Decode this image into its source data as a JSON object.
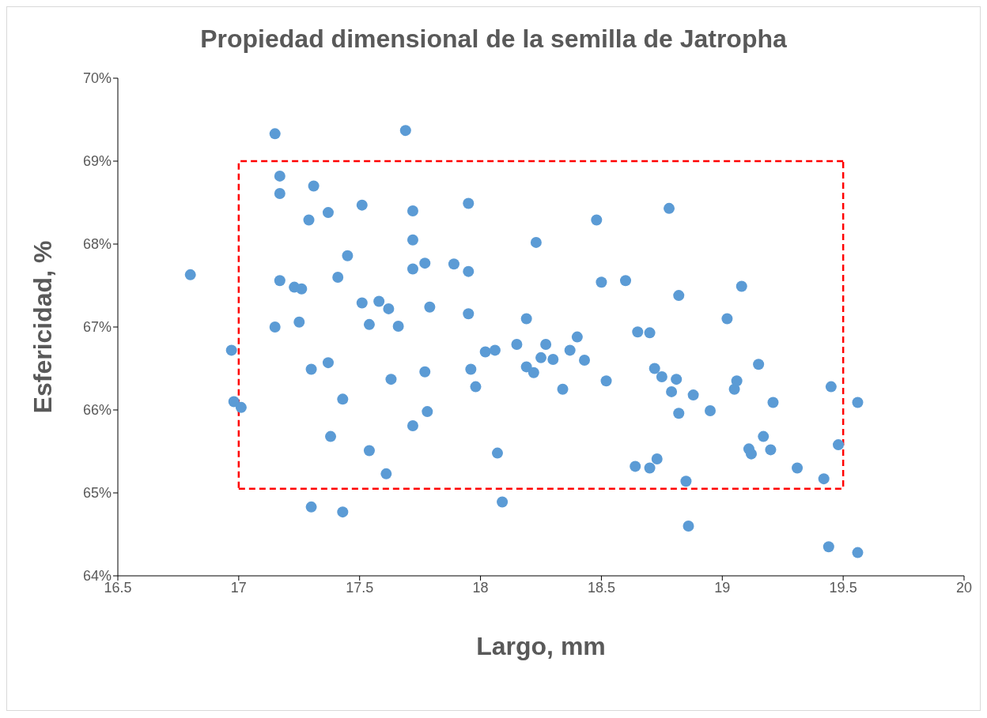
{
  "chart_data": {
    "type": "scatter",
    "title": "Propiedad dimensional de la semilla de Jatropha",
    "xlabel": "Largo, mm",
    "ylabel": "Esfericidad, %",
    "xlim": [
      16.5,
      20
    ],
    "xticks": [
      16.5,
      17,
      17.5,
      18,
      18.5,
      19,
      19.5,
      20
    ],
    "grid": false,
    "ylim": [
      64,
      70
    ],
    "yticks": [
      {
        "value": 64,
        "label": "64%"
      },
      {
        "value": 65,
        "label": "65%"
      },
      {
        "value": 66,
        "label": "66%"
      },
      {
        "value": 67,
        "label": "67%"
      },
      {
        "value": 68,
        "label": "68%"
      },
      {
        "value": 69,
        "label": "69%"
      },
      {
        "value": 70,
        "label": "70%"
      }
    ],
    "series": [
      {
        "type": "scatter",
        "color": "#5b9bd5",
        "marker": "circle",
        "x": [
          16.8,
          16.97,
          16.98,
          17.01,
          17.15,
          17.17,
          17.17,
          17.15,
          17.17,
          17.23,
          17.26,
          17.25,
          17.31,
          17.29,
          17.37,
          17.3,
          17.37,
          17.41,
          17.45,
          17.43,
          17.38,
          17.3,
          17.43,
          17.51,
          17.51,
          17.54,
          17.58,
          17.62,
          17.66,
          17.63,
          17.54,
          17.61,
          17.69,
          17.72,
          17.72,
          17.72,
          17.77,
          17.79,
          17.77,
          17.78,
          17.72,
          17.95,
          17.89,
          17.95,
          17.95,
          17.96,
          17.98,
          18.02,
          18.06,
          18.07,
          18.09,
          18.15,
          18.19,
          18.19,
          18.23,
          18.22,
          18.25,
          18.27,
          18.3,
          18.34,
          18.37,
          18.4,
          18.43,
          18.48,
          18.5,
          18.52,
          18.6,
          18.65,
          18.7,
          18.64,
          18.7,
          18.73,
          18.72,
          18.75,
          18.78,
          18.82,
          18.81,
          18.79,
          18.82,
          18.88,
          18.85,
          18.86,
          18.95,
          19.02,
          19.08,
          19.05,
          19.06,
          19.15,
          19.17,
          19.11,
          19.12,
          19.2,
          19.21,
          19.31,
          19.42,
          19.45,
          19.48,
          19.56,
          19.44,
          19.56
        ],
        "values": [
          67.63,
          66.72,
          66.1,
          66.03,
          69.33,
          68.82,
          68.61,
          67.0,
          67.56,
          67.48,
          67.46,
          67.06,
          68.7,
          68.29,
          68.38,
          66.49,
          66.57,
          67.6,
          67.86,
          66.13,
          65.68,
          64.83,
          64.77,
          68.47,
          67.29,
          67.03,
          67.31,
          67.22,
          67.01,
          66.37,
          65.51,
          65.23,
          69.37,
          68.4,
          68.05,
          67.7,
          67.77,
          67.24,
          66.46,
          65.98,
          65.81,
          68.49,
          67.76,
          67.67,
          67.16,
          66.49,
          66.28,
          66.7,
          66.72,
          65.48,
          64.89,
          66.79,
          67.1,
          66.52,
          68.02,
          66.45,
          66.63,
          66.79,
          66.61,
          66.25,
          66.72,
          66.88,
          66.6,
          68.29,
          67.54,
          66.35,
          67.56,
          66.94,
          66.93,
          65.32,
          65.3,
          65.41,
          66.5,
          66.4,
          68.43,
          67.38,
          66.37,
          66.22,
          65.96,
          66.18,
          65.14,
          64.6,
          65.99,
          67.1,
          67.49,
          66.25,
          66.35,
          66.55,
          65.68,
          65.53,
          65.47,
          65.52,
          66.09,
          65.3,
          65.17,
          66.28,
          65.58,
          66.09,
          64.35,
          64.28
        ]
      },
      {
        "type": "line",
        "color": "#ff0000",
        "line_style": "dashed",
        "marker": "none",
        "x": [
          17,
          19.5,
          19.5
        ],
        "values": [
          65.05,
          65.05,
          69
        ]
      },
      {
        "type": "line",
        "color": "#ff0000",
        "line_style": "dashed",
        "marker": "none",
        "x": [
          19.5,
          17,
          17
        ],
        "values": [
          69,
          69,
          65.05
        ]
      }
    ]
  }
}
